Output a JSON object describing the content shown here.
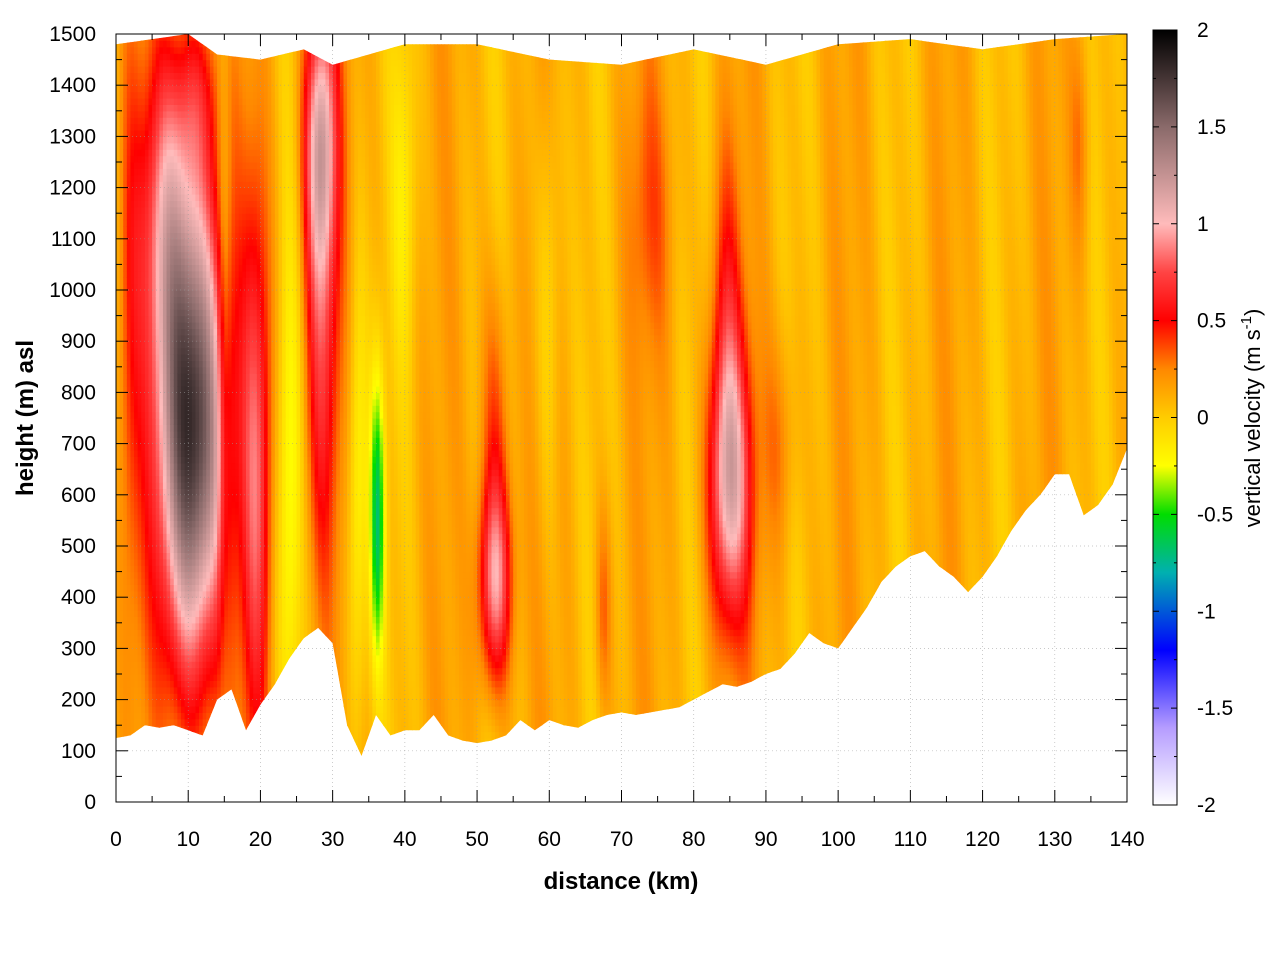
{
  "chart_data": {
    "type": "heatmap",
    "title": "",
    "xlabel": "distance (km)",
    "ylabel": "height (m) asl",
    "xlim": [
      0,
      140
    ],
    "ylim": [
      0,
      1500
    ],
    "x_ticks": [
      "0",
      "10",
      "20",
      "30",
      "40",
      "50",
      "60",
      "70",
      "80",
      "90",
      "100",
      "110",
      "120",
      "130",
      "140"
    ],
    "y_ticks": [
      "0",
      "100",
      "200",
      "300",
      "400",
      "500",
      "600",
      "700",
      "800",
      "900",
      "1000",
      "1100",
      "1200",
      "1300",
      "1400",
      "1500"
    ],
    "grid": true,
    "colorbar": {
      "label_main": "vertical velocity (m s",
      "label_sup": "-1",
      "label_end": ")",
      "range": [
        -2,
        2
      ],
      "ticks": [
        "-2",
        "-1.5",
        "-1",
        "-0.5",
        "0",
        "0.5",
        "1",
        "1.5",
        "2"
      ],
      "colors": [
        {
          "v": -2.0,
          "c": "#ffffff"
        },
        {
          "v": -1.6,
          "c": "#b59cff"
        },
        {
          "v": -1.2,
          "c": "#0000ff"
        },
        {
          "v": -0.8,
          "c": "#00b0b0"
        },
        {
          "v": -0.5,
          "c": "#00dd00"
        },
        {
          "v": -0.25,
          "c": "#ffff00"
        },
        {
          "v": 0.0,
          "c": "#ffcc00"
        },
        {
          "v": 0.25,
          "c": "#ff8800"
        },
        {
          "v": 0.5,
          "c": "#ff0000"
        },
        {
          "v": 0.75,
          "c": "#ff4444"
        },
        {
          "v": 1.0,
          "c": "#ffbbbb"
        },
        {
          "v": 1.5,
          "c": "#8a6a6a"
        },
        {
          "v": 2.0,
          "c": "#000000"
        }
      ]
    },
    "terrain": {
      "x": [
        0,
        2,
        4,
        6,
        8,
        10,
        12,
        14,
        16,
        18,
        20,
        22,
        24,
        26,
        28,
        30,
        32,
        34,
        36,
        38,
        40,
        42,
        44,
        46,
        48,
        50,
        52,
        54,
        56,
        58,
        60,
        62,
        64,
        66,
        68,
        70,
        72,
        74,
        76,
        78,
        80,
        82,
        84,
        86,
        88,
        90,
        92,
        94,
        96,
        98,
        100,
        102,
        104,
        106,
        108,
        110,
        112,
        114,
        116,
        118,
        120,
        122,
        124,
        126,
        128,
        130,
        132,
        134,
        136,
        138,
        140
      ],
      "y": [
        125,
        130,
        150,
        145,
        150,
        140,
        130,
        200,
        220,
        140,
        190,
        230,
        280,
        320,
        340,
        310,
        150,
        90,
        170,
        130,
        140,
        140,
        170,
        130,
        120,
        115,
        120,
        130,
        160,
        140,
        160,
        150,
        145,
        160,
        170,
        175,
        170,
        175,
        180,
        185,
        200,
        215,
        230,
        225,
        235,
        250,
        260,
        290,
        330,
        310,
        300,
        340,
        380,
        430,
        460,
        480,
        490,
        460,
        440,
        410,
        440,
        480,
        530,
        570,
        600,
        640,
        640,
        560,
        580,
        620,
        690
      ]
    },
    "top": {
      "x": [
        0,
        10,
        14,
        20,
        26,
        30,
        40,
        50,
        60,
        70,
        80,
        90,
        100,
        110,
        120,
        130,
        140
      ],
      "y": [
        1480,
        1500,
        1460,
        1450,
        1470,
        1440,
        1480,
        1480,
        1450,
        1440,
        1470,
        1440,
        1480,
        1490,
        1470,
        1490,
        1500
      ]
    },
    "background_value": 0.1,
    "features": [
      {
        "type": "updraft",
        "x_km": 10.5,
        "y_m": 720,
        "w_km": 4.2,
        "h_m": 420,
        "value": 1.85
      },
      {
        "type": "updraft",
        "x_km": 7.0,
        "y_m": 1150,
        "w_km": 3.5,
        "h_m": 300,
        "value": 0.7
      },
      {
        "type": "updraft",
        "x_km": 11.0,
        "y_m": 1380,
        "w_km": 3.0,
        "h_m": 150,
        "value": 0.4
      },
      {
        "type": "updraft",
        "x_km": 19.5,
        "y_m": 650,
        "w_km": 1.8,
        "h_m": 500,
        "value": 0.75
      },
      {
        "type": "updraft",
        "x_km": 28.3,
        "y_m": 1300,
        "w_km": 2.0,
        "h_m": 250,
        "value": 1.0
      },
      {
        "type": "updraft",
        "x_km": 28.5,
        "y_m": 900,
        "w_km": 2.0,
        "h_m": 420,
        "value": 0.65
      },
      {
        "type": "downdraft",
        "x_km": 36.2,
        "y_m": 560,
        "w_km": 0.9,
        "h_m": 250,
        "value": -0.6
      },
      {
        "type": "downdraft",
        "x_km": 24.0,
        "y_m": 600,
        "w_km": 1.4,
        "h_m": 450,
        "value": -0.2
      },
      {
        "type": "downdraft",
        "x_km": 33.5,
        "y_m": 600,
        "w_km": 1.2,
        "h_m": 400,
        "value": -0.25
      },
      {
        "type": "updraft",
        "x_km": 52.5,
        "y_m": 430,
        "w_km": 2.0,
        "h_m": 180,
        "value": 0.95
      },
      {
        "type": "updraft",
        "x_km": 52.5,
        "y_m": 750,
        "w_km": 1.8,
        "h_m": 250,
        "value": 0.4
      },
      {
        "type": "updraft",
        "x_km": 85.0,
        "y_m": 620,
        "w_km": 2.6,
        "h_m": 250,
        "value": 1.05
      },
      {
        "type": "updraft",
        "x_km": 84.5,
        "y_m": 950,
        "w_km": 1.8,
        "h_m": 300,
        "value": 0.45
      },
      {
        "type": "updraft",
        "x_km": 92.0,
        "y_m": 700,
        "w_km": 2.0,
        "h_m": 200,
        "value": 0.3
      },
      {
        "type": "updraft",
        "x_km": 74.0,
        "y_m": 1150,
        "w_km": 3.0,
        "h_m": 250,
        "value": 0.3
      },
      {
        "type": "updraft",
        "x_km": 67.5,
        "y_m": 380,
        "w_km": 1.0,
        "h_m": 180,
        "value": 0.35
      },
      {
        "type": "updraft",
        "x_km": 133.5,
        "y_m": 1300,
        "w_km": 1.2,
        "h_m": 200,
        "value": 0.3
      },
      {
        "type": "updraft",
        "x_km": 2.0,
        "y_m": 900,
        "w_km": 1.3,
        "h_m": 500,
        "value": 0.3
      },
      {
        "type": "updraft",
        "x_km": 15.0,
        "y_m": 900,
        "w_km": 0.8,
        "h_m": 600,
        "value": -0.15
      },
      {
        "type": "updraft",
        "x_km": 60.0,
        "y_m": 1000,
        "w_km": 1.5,
        "h_m": 400,
        "value": -0.1
      },
      {
        "type": "updraft",
        "x_km": 40.0,
        "y_m": 1200,
        "w_km": 1.5,
        "h_m": 300,
        "value": -0.1
      }
    ]
  }
}
